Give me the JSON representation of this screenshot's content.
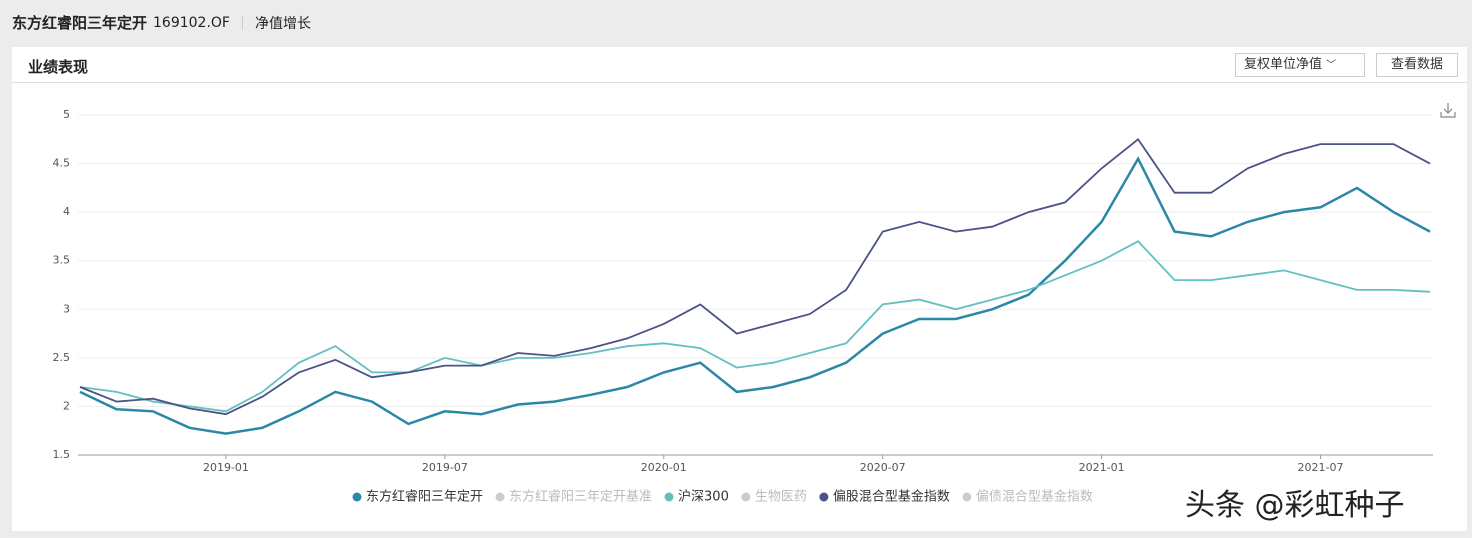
{
  "header": {
    "title": "东方红睿阳三年定开",
    "code": "169102.OF",
    "tab": "净值增长"
  },
  "card": {
    "title": "业绩表现",
    "dropdown": "复权单位净值",
    "button": "查看数据"
  },
  "watermark": "头条 @彩虹种子",
  "chart_data": {
    "type": "line",
    "x": [
      "2018-09",
      "2018-10",
      "2018-11",
      "2018-12",
      "2019-01",
      "2019-02",
      "2019-03",
      "2019-04",
      "2019-05",
      "2019-06",
      "2019-07",
      "2019-08",
      "2019-09",
      "2019-10",
      "2019-11",
      "2019-12",
      "2020-01",
      "2020-02",
      "2020-03",
      "2020-04",
      "2020-05",
      "2020-06",
      "2020-07",
      "2020-08",
      "2020-09",
      "2020-10",
      "2020-11",
      "2020-12",
      "2021-01",
      "2021-02",
      "2021-03",
      "2021-04",
      "2021-05",
      "2021-06",
      "2021-07",
      "2021-08",
      "2021-09",
      "2021-10"
    ],
    "xlim": [
      "2018-09",
      "2021-10"
    ],
    "xticks": [
      "2019-01",
      "2019-07",
      "2020-01",
      "2020-07",
      "2021-01",
      "2021-07"
    ],
    "ylim": [
      1.5,
      5
    ],
    "yticks": [
      1.5,
      2,
      2.5,
      3,
      3.5,
      4,
      4.5,
      5
    ],
    "grid": true,
    "series": [
      {
        "name": "东方红睿阳三年定开",
        "color": "#2b87a6",
        "visible": true,
        "values": [
          2.15,
          1.97,
          1.95,
          1.78,
          1.72,
          1.78,
          1.95,
          2.15,
          2.05,
          1.82,
          1.95,
          1.92,
          2.02,
          2.05,
          2.12,
          2.2,
          2.35,
          2.45,
          2.15,
          2.2,
          2.3,
          2.45,
          2.75,
          2.9,
          2.9,
          3.0,
          3.15,
          3.5,
          3.9,
          4.55,
          3.8,
          3.75,
          3.9,
          4.0,
          4.05,
          4.25,
          4.0,
          3.8
        ]
      },
      {
        "name": "东方红睿阳三年定开基准",
        "color": "#cccccc",
        "visible": false
      },
      {
        "name": "沪深300",
        "color": "#63c0c0",
        "visible": true,
        "values": [
          2.2,
          2.15,
          2.05,
          2.0,
          1.95,
          2.15,
          2.45,
          2.62,
          2.35,
          2.35,
          2.5,
          2.42,
          2.5,
          2.5,
          2.55,
          2.62,
          2.65,
          2.6,
          2.4,
          2.45,
          2.55,
          2.65,
          3.05,
          3.1,
          3.0,
          3.1,
          3.2,
          3.35,
          3.5,
          3.7,
          3.3,
          3.3,
          3.35,
          3.4,
          3.3,
          3.2,
          3.2,
          3.18
        ]
      },
      {
        "name": "生物医药",
        "color": "#cccccc",
        "visible": false
      },
      {
        "name": "偏股混合型基金指数",
        "color": "#4b5285",
        "visible": true,
        "values": [
          2.2,
          2.05,
          2.08,
          1.98,
          1.92,
          2.1,
          2.35,
          2.48,
          2.3,
          2.35,
          2.42,
          2.42,
          2.55,
          2.52,
          2.6,
          2.7,
          2.85,
          3.05,
          2.75,
          2.85,
          2.95,
          3.2,
          3.8,
          3.9,
          3.8,
          3.85,
          4.0,
          4.1,
          4.45,
          4.75,
          4.2,
          4.2,
          4.45,
          4.6,
          4.7,
          4.7,
          4.7,
          4.5
        ]
      },
      {
        "name": "偏债混合型基金指数",
        "color": "#cccccc",
        "visible": false
      }
    ]
  }
}
